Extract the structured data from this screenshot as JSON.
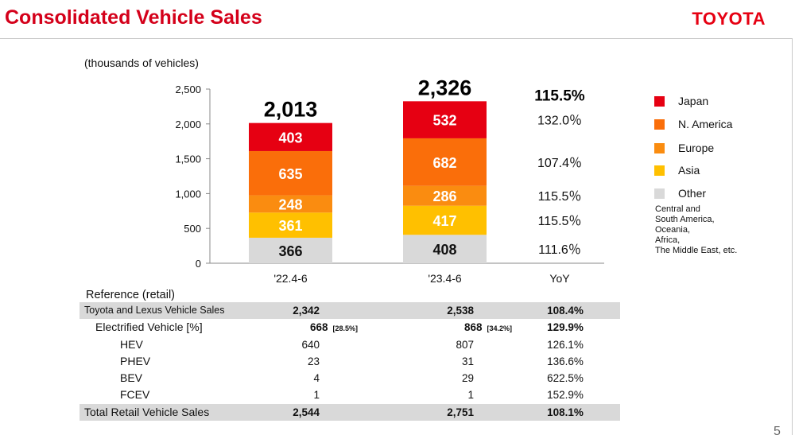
{
  "header": {
    "title": "Consolidated Vehicle Sales",
    "brand": "TOYOTA"
  },
  "page_number": "5",
  "chart_data": {
    "type": "bar",
    "stacked": true,
    "unit_label": "(thousands of vehicles)",
    "categories": [
      "'22.4-6",
      "'23.4-6"
    ],
    "series": [
      {
        "name": "Other",
        "color": "#d9d9d9",
        "label_color": "#111111",
        "values": [
          366,
          408
        ]
      },
      {
        "name": "Asia",
        "color": "#ffc000",
        "label_color": "#ffffff",
        "values": [
          361,
          417
        ]
      },
      {
        "name": "Europe",
        "color": "#fa8c10",
        "label_color": "#ffffff",
        "values": [
          248,
          286
        ]
      },
      {
        "name": "N. America",
        "color": "#fa6e0a",
        "label_color": "#ffffff",
        "values": [
          635,
          682
        ]
      },
      {
        "name": "Japan",
        "color": "#e60012",
        "label_color": "#ffffff",
        "values": [
          403,
          532
        ]
      }
    ],
    "totals": [
      "2,013",
      "2,326"
    ],
    "ylim": [
      0,
      2500
    ],
    "yticks": [
      0,
      500,
      1000,
      1500,
      2000,
      2500
    ],
    "ytick_labels": [
      "0",
      "500",
      "1,000",
      "1,500",
      "2,000",
      "2,500"
    ],
    "yoy_header": "YoY",
    "yoy_total": "115.5%",
    "yoy": [
      {
        "series": "Japan",
        "label": "132.0％"
      },
      {
        "series": "N. America",
        "label": "107.4％"
      },
      {
        "series": "Europe",
        "label": "115.5％"
      },
      {
        "series": "Asia",
        "label": "115.5％"
      },
      {
        "series": "Other",
        "label": "111.6％"
      }
    ],
    "legend": {
      "items": [
        {
          "name": "Japan",
          "color": "#e60012"
        },
        {
          "name": "N. America",
          "color": "#fa6e0a"
        },
        {
          "name": "Europe",
          "color": "#fa8c10"
        },
        {
          "name": "Asia",
          "color": "#ffc000"
        },
        {
          "name": "Other",
          "color": "#d9d9d9"
        }
      ],
      "note": "Central and\nSouth America,\nOceania,\nAfrica,\nThe Middle East, etc."
    },
    "grid": false
  },
  "reference": {
    "label": "Reference (retail)",
    "rows": [
      {
        "name": "Toyota and Lexus Vehicle Sales",
        "v1": "2,342",
        "v1_pct": "",
        "v2": "2,538",
        "v2_pct": "",
        "yoy": "108.4%"
      },
      {
        "name": "Electrified Vehicle [%]",
        "v1": "668",
        "v1_pct": "[28.5%]",
        "v2": "868",
        "v2_pct": "[34.2%]",
        "yoy": "129.9%"
      },
      {
        "name": "HEV",
        "v1": "640",
        "v1_pct": "",
        "v2": "807",
        "v2_pct": "",
        "yoy": "126.1%"
      },
      {
        "name": "PHEV",
        "v1": "23",
        "v1_pct": "",
        "v2": "31",
        "v2_pct": "",
        "yoy": "136.6%"
      },
      {
        "name": "BEV",
        "v1": "4",
        "v1_pct": "",
        "v2": "29",
        "v2_pct": "",
        "yoy": "622.5%"
      },
      {
        "name": "FCEV",
        "v1": "1",
        "v1_pct": "",
        "v2": "1",
        "v2_pct": "",
        "yoy": "152.9%"
      },
      {
        "name": "Total Retail Vehicle Sales",
        "v1": "2,544",
        "v1_pct": "",
        "v2": "2,751",
        "v2_pct": "",
        "yoy": "108.1%"
      }
    ]
  }
}
